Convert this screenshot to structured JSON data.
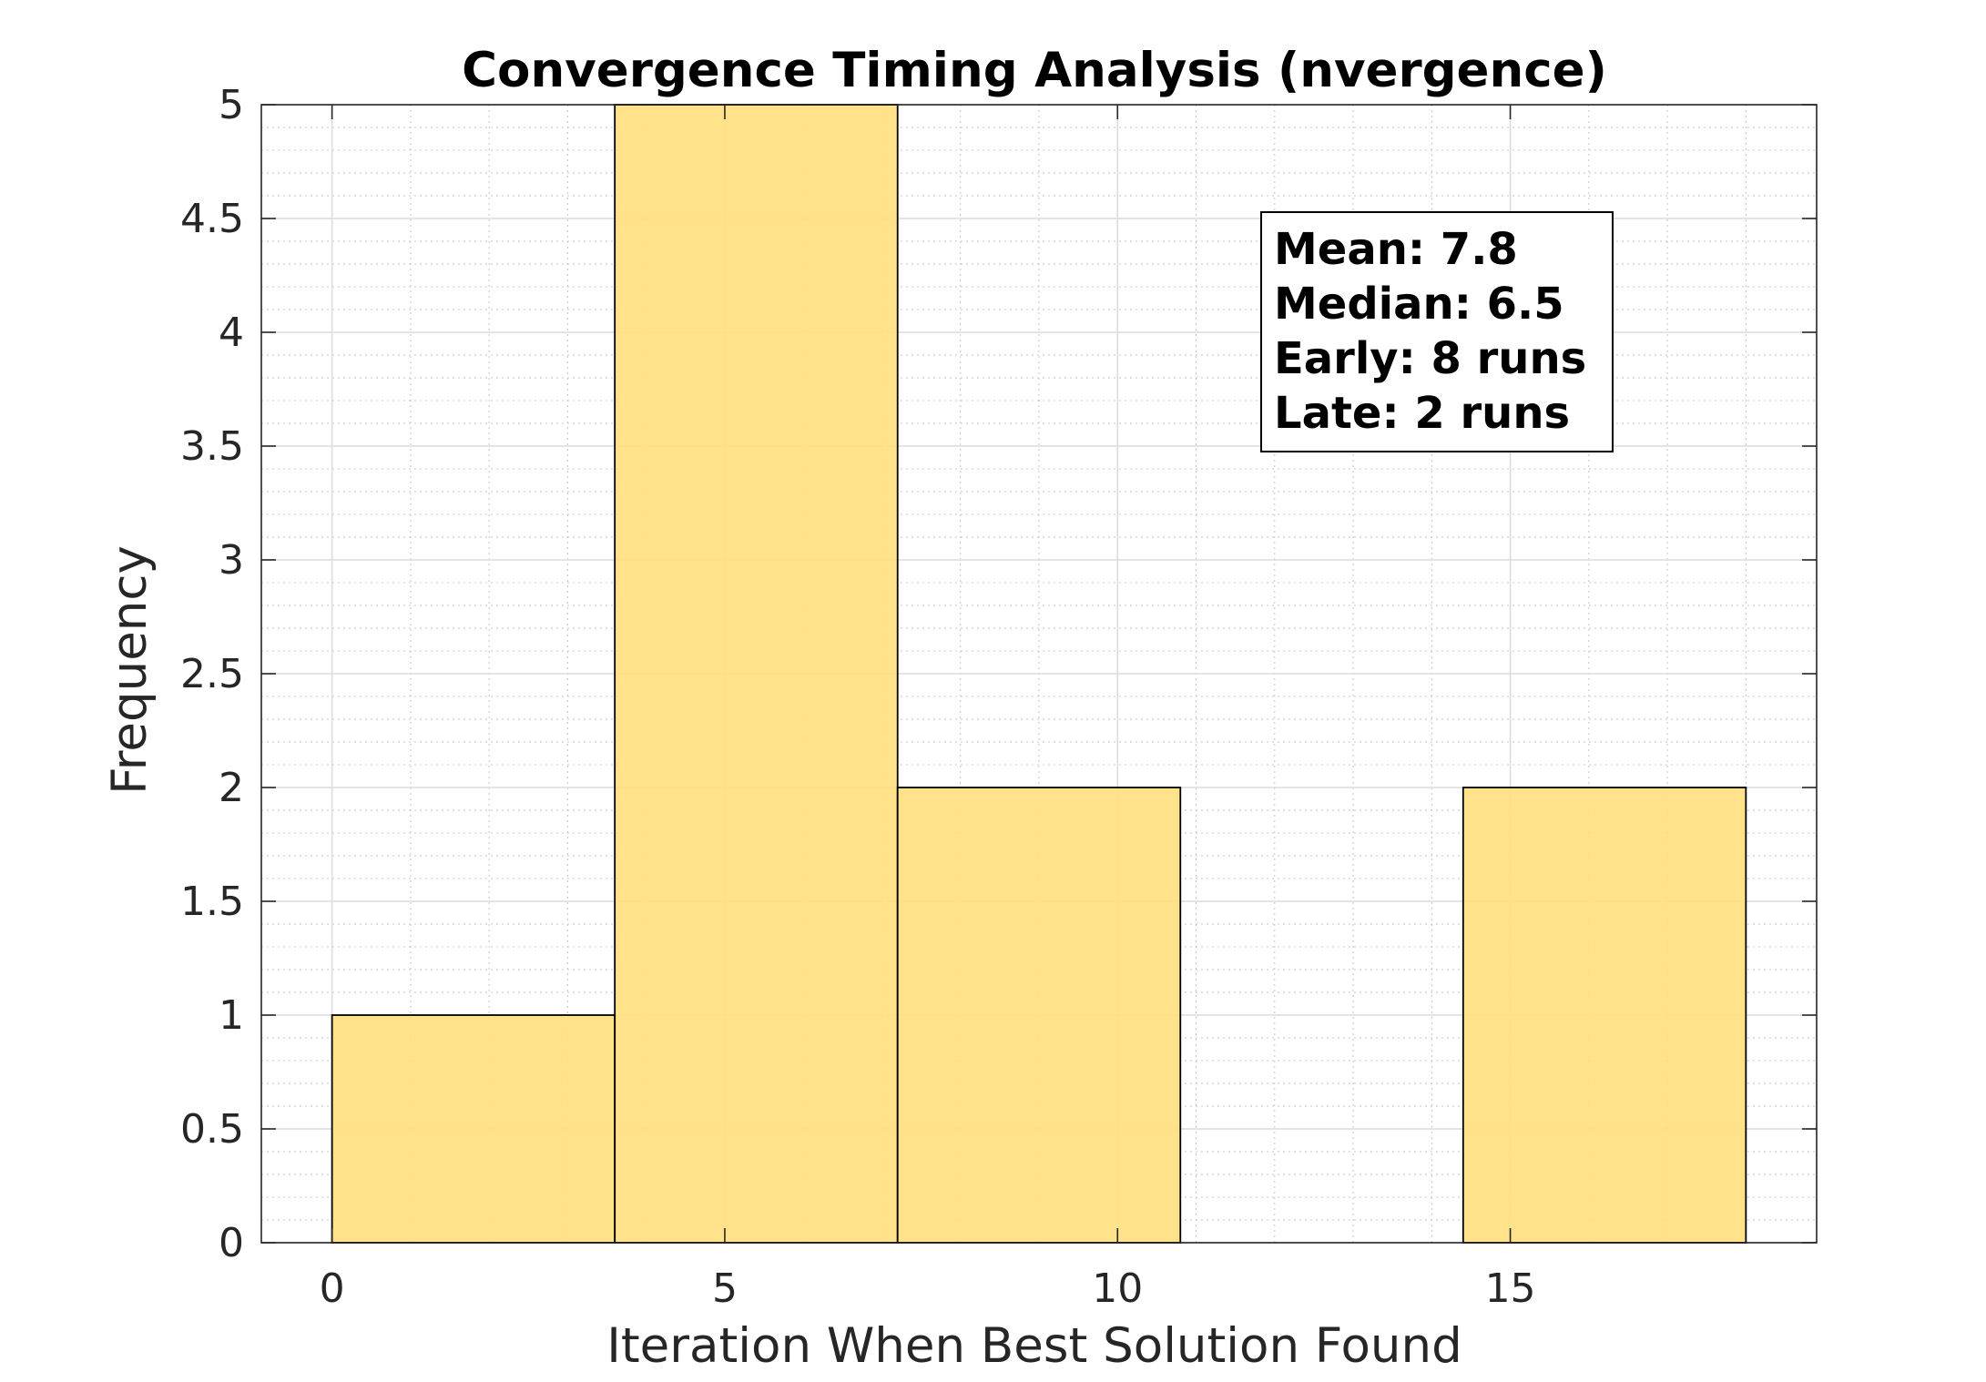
{
  "chart_data": {
    "type": "bar",
    "subtype": "histogram",
    "title": "Convergence Timing Analysis (nvergence)",
    "xlabel": "Iteration When Best Solution Found",
    "ylabel": "Frequency",
    "xlim": [
      -0.9,
      18.9
    ],
    "ylim": [
      0,
      5
    ],
    "xticks": [
      0,
      5,
      10,
      15
    ],
    "xtick_labels": [
      "0",
      "5",
      "10",
      "15"
    ],
    "yticks": [
      0,
      0.5,
      1,
      1.5,
      2,
      2.5,
      3,
      3.5,
      4,
      4.5,
      5
    ],
    "ytick_labels": [
      "0",
      "0.5",
      "1",
      "1.5",
      "2",
      "2.5",
      "3",
      "3.5",
      "4",
      "4.5",
      "5"
    ],
    "bin_edges": [
      0,
      3.6,
      7.2,
      10.8,
      14.4,
      18
    ],
    "counts": [
      1,
      5,
      2,
      0,
      2
    ],
    "bar_color": "#ffdf80",
    "edge_color": "#000000",
    "grid": true,
    "minor_grid": true,
    "stats_box": {
      "position": "top-right",
      "lines": [
        "Mean: 7.8",
        "Median: 6.5",
        "Early: 8 runs",
        "Late: 2 runs"
      ]
    }
  }
}
